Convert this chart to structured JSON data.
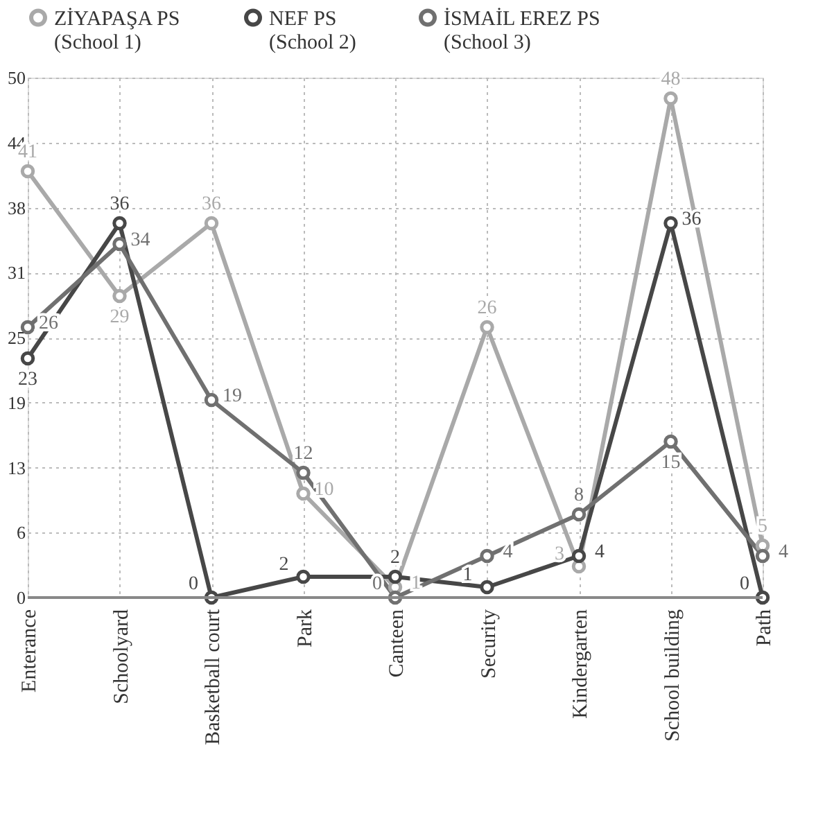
{
  "chart_data": {
    "type": "line",
    "categories": [
      "Enterance",
      "Schoolyard",
      "Basketball court",
      "Park",
      "Canteen",
      "Security",
      "Kindergarten",
      "School building",
      "Path"
    ],
    "series": [
      {
        "name": "ZİYAPAŞA PS\n(School 1)",
        "color": "#a9a9a9",
        "values": [
          41,
          29,
          36,
          10,
          1,
          26,
          3,
          48,
          5
        ]
      },
      {
        "name": "NEF PS\n(School 2)",
        "color": "#474747",
        "values": [
          23,
          36,
          0,
          2,
          2,
          1,
          4,
          36,
          0
        ]
      },
      {
        "name": "İSMAİL EREZ PS\n(School 3)",
        "color": "#707070",
        "values": [
          26,
          34,
          19,
          12,
          0,
          4,
          8,
          15,
          4
        ]
      }
    ],
    "ylim": [
      0,
      50
    ],
    "yticks": [
      0,
      {
        "value": 6.25,
        "label": "6"
      },
      {
        "value": 12.5,
        "label": "13"
      },
      {
        "value": 18.75,
        "label": "19"
      },
      25,
      {
        "value": 31.25,
        "label": "31"
      },
      {
        "value": 37.5,
        "label": "38"
      },
      {
        "value": 43.75,
        "label": "44"
      },
      50
    ],
    "grid": true,
    "legend": "top",
    "marker": "circle",
    "line_style": "solid",
    "data_labels": true
  }
}
